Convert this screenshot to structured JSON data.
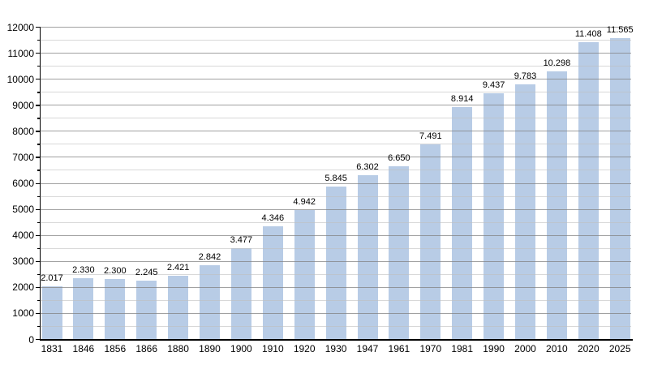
{
  "chart_data": {
    "type": "bar",
    "title": "",
    "xlabel": "",
    "ylabel": "",
    "categories": [
      "1831",
      "1846",
      "1856",
      "1866",
      "1880",
      "1890",
      "1900",
      "1910",
      "1920",
      "1930",
      "1947",
      "1961",
      "1970",
      "1981",
      "1990",
      "2000",
      "2010",
      "2020",
      "2025"
    ],
    "values": [
      2017,
      2330,
      2300,
      2245,
      2421,
      2842,
      3477,
      4346,
      4942,
      5845,
      6302,
      6650,
      7491,
      8914,
      9437,
      9783,
      10298,
      11408,
      11565
    ],
    "bar_labels": [
      "2.017",
      "2.330",
      "2.300",
      "2.245",
      "2.421",
      "2.842",
      "3.477",
      "4.346",
      "4.942",
      "5.845",
      "6.302",
      "6.650",
      "7.491",
      "8.914",
      "9.437",
      "9.783",
      "10.298",
      "11.408",
      "11.565"
    ],
    "ylim": [
      0,
      12000
    ],
    "y_major_step": 1000,
    "y_minor_step": 500,
    "y_tick_labels": [
      "0",
      "1000",
      "2000",
      "3000",
      "4000",
      "5000",
      "6000",
      "7000",
      "8000",
      "9000",
      "10000",
      "11000",
      "12000"
    ],
    "grid": "horizontal major+minor, on",
    "legend": "none",
    "colors": {
      "bar_fill": "#b8cce6",
      "major_gridline": "#828282",
      "minor_gridline": "#bebebe",
      "axis": "#000000",
      "text": "#000000",
      "background": "#ffffff"
    }
  }
}
